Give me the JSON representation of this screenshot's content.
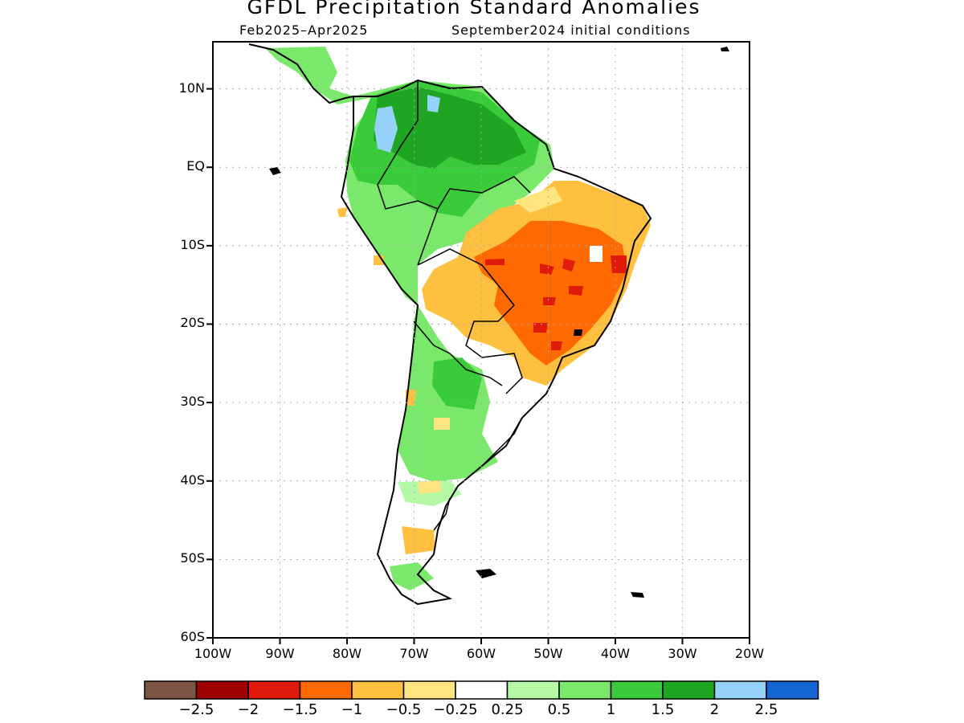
{
  "title": "GFDL Precipitation Standard Anomalies",
  "subtitle_left": "Feb2025–Apr2025",
  "subtitle_right": "September2024 initial conditions",
  "map": {
    "lat_labels": [
      "10N",
      "EQ",
      "10S",
      "20S",
      "30S",
      "40S",
      "50S",
      "60S"
    ],
    "lon_labels": [
      "100W",
      "90W",
      "80W",
      "70W",
      "60W",
      "50W",
      "40W",
      "30W",
      "20W"
    ],
    "lat_range": [
      -60,
      16
    ],
    "lon_range": [
      -100,
      -20
    ],
    "grid": "dotted"
  },
  "colorbar": {
    "colors": [
      "#7b5444",
      "#a10000",
      "#e01b0b",
      "#ff6a00",
      "#ffbf3f",
      "#ffe57f",
      "#ffffff",
      "#b4f9a6",
      "#7ae96b",
      "#3acb3a",
      "#1ea623",
      "#96d1fa",
      "#1565d6"
    ],
    "labels": [
      "−2.5",
      "−2",
      "−1.5",
      "−1",
      "−0.5",
      "−0.25",
      "0.25",
      "0.5",
      "1",
      "1.5",
      "2",
      "2.5"
    ]
  }
}
